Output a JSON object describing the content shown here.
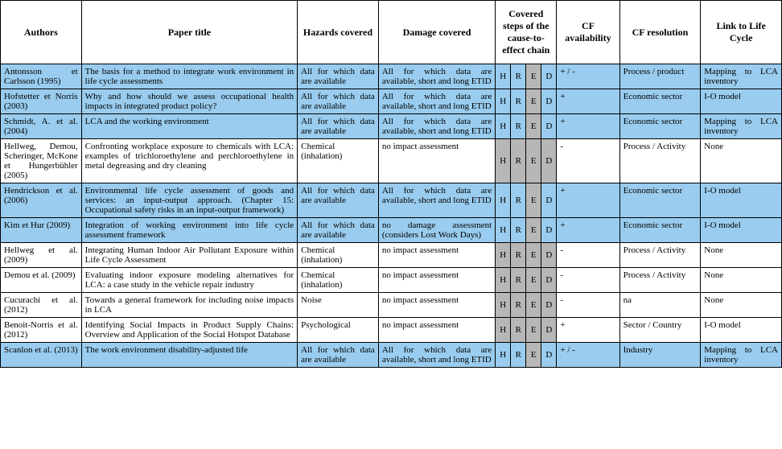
{
  "headers": {
    "authors": "Authors",
    "title": "Paper title",
    "hazards": "Hazards covered",
    "damage": "Damage covered",
    "steps": "Covered steps of the cause-to-effect chain",
    "cfavail": "CF availability",
    "cfres": "CF resolution",
    "link": "Link to Life Cycle"
  },
  "hred": {
    "H": "H",
    "R": "R",
    "E": "E",
    "D": "D"
  },
  "rows": [
    {
      "blue": true,
      "authors": "Antonsson et Carlsson (1995)",
      "title": "The basis for a method to integrate work environment in life cycle assessments",
      "hazards": "All for which data are available",
      "damage": "All for which data are available, short and long ETID",
      "Hon": true,
      "Ron": true,
      "Eoff": true,
      "Don": true,
      "cfavail": "+ / -",
      "cfres": "Process / product",
      "link": "Mapping to LCA inventory"
    },
    {
      "blue": true,
      "authors": "Hofstetter et Norris (2003)",
      "title": "Why and how should we assess occupational health impacts in integrated product policy?",
      "hazards": "All for which data are available",
      "damage": "All for which data are available, short and long ETID",
      "Hon": true,
      "Ron": true,
      "Eoff": true,
      "Don": true,
      "cfavail": "+",
      "cfres": "Economic sector",
      "link": "I-O model"
    },
    {
      "blue": true,
      "authors": "Schmidt, A. et al. (2004)",
      "title": "LCA and the working environment",
      "hazards": "All for which data are available",
      "damage": "All for which data are available, short and long ETID",
      "Hon": true,
      "Ron": true,
      "Eoff": true,
      "Don": true,
      "cfavail": "+",
      "cfres": "Economic sector",
      "link": "Mapping to LCA inventory"
    },
    {
      "blue": false,
      "authors": "Hellweg, Demou, Scheringer, McKone et Hungerbühler (2005)",
      "title": "Confronting workplace exposure to chemicals with LCA: examples of trichloroethylene and perchloroethylene in metal degreasing and dry cleaning",
      "hazards": "Chemical (inhalation)",
      "damage": "no impact assessment",
      "Hon": false,
      "Ron": false,
      "Eoff": true,
      "Don": false,
      "cfavail": "-",
      "cfres": "Process / Activity",
      "link": "None"
    },
    {
      "blue": true,
      "authors": "Hendrickson et al. (2006)",
      "title": "Environmental life cycle assessment of goods and services: an input-output approach. (Chapter 15: Occupational safety risks in an input-output framework)",
      "hazards": "All for which data are available",
      "damage": "All for which data are available, short and long ETID",
      "Hon": true,
      "Ron": true,
      "Eoff": true,
      "Don": true,
      "cfavail": "+",
      "cfres": "Economic sector",
      "link": "I-O model"
    },
    {
      "blue": true,
      "authors": "Kim et Hur (2009)",
      "title": "Integration of working environment into life cycle assessment framework",
      "hazards": "All for which data are available",
      "damage": "no damage assessment (considers Lost Work Days)",
      "Hon": true,
      "Ron": true,
      "Eoff": true,
      "Don": true,
      "cfavail": "+",
      "cfres": "Economic sector",
      "link": "I-O model"
    },
    {
      "blue": false,
      "authors": "Hellweg et al. (2009)",
      "title": "Integrating Human Indoor Air Pollutant Exposure within Life Cycle Assessment",
      "hazards": "Chemical (inhalation)",
      "damage": "no impact assessment",
      "Hon": false,
      "Ron": false,
      "Eoff": true,
      "Don": false,
      "cfavail": "-",
      "cfres": "Process / Activity",
      "link": "None"
    },
    {
      "blue": false,
      "authors": "Demou et al. (2009)",
      "title": "Evaluating indoor exposure modeling alternatives for LCA: a case study in the vehicle repair industry",
      "hazards": "Chemical (inhalation)",
      "damage": "no impact assessment",
      "Hon": false,
      "Ron": false,
      "Eoff": true,
      "Don": false,
      "cfavail": "-",
      "cfres": "Process / Activity",
      "link": "None"
    },
    {
      "blue": false,
      "authors": "Cucurachi et al. (2012)",
      "title": "Towards a general framework for including noise impacts in LCA",
      "hazards": "Noise",
      "damage": "no impact assessment",
      "Hon": false,
      "Ron": false,
      "Eoff": true,
      "Don": false,
      "cfavail": "-",
      "cfres": "na",
      "link": "None"
    },
    {
      "blue": false,
      "authors": "Benoit-Norris et al. (2012)",
      "title": "Identifying Social Impacts in Product Supply Chains: Overview and Application of the Social Hotspot Database",
      "hazards": "Psychological",
      "damage": "no impact assessment",
      "Hon": false,
      "Ron": false,
      "Eoff": true,
      "Don": false,
      "cfavail": "+",
      "cfres": "Sector / Country",
      "link": "I-O model"
    },
    {
      "blue": true,
      "authors": "Scanlon et al. (2013)",
      "title": "The work environment disability-adjusted life",
      "hazards": "All for which data are available",
      "damage": "All for which data are available, short and long ETID",
      "Hon": true,
      "Ron": true,
      "Eoff": true,
      "Don": true,
      "cfavail": "+ / -",
      "cfres": "Industry",
      "link": "Mapping to LCA inventory"
    }
  ]
}
